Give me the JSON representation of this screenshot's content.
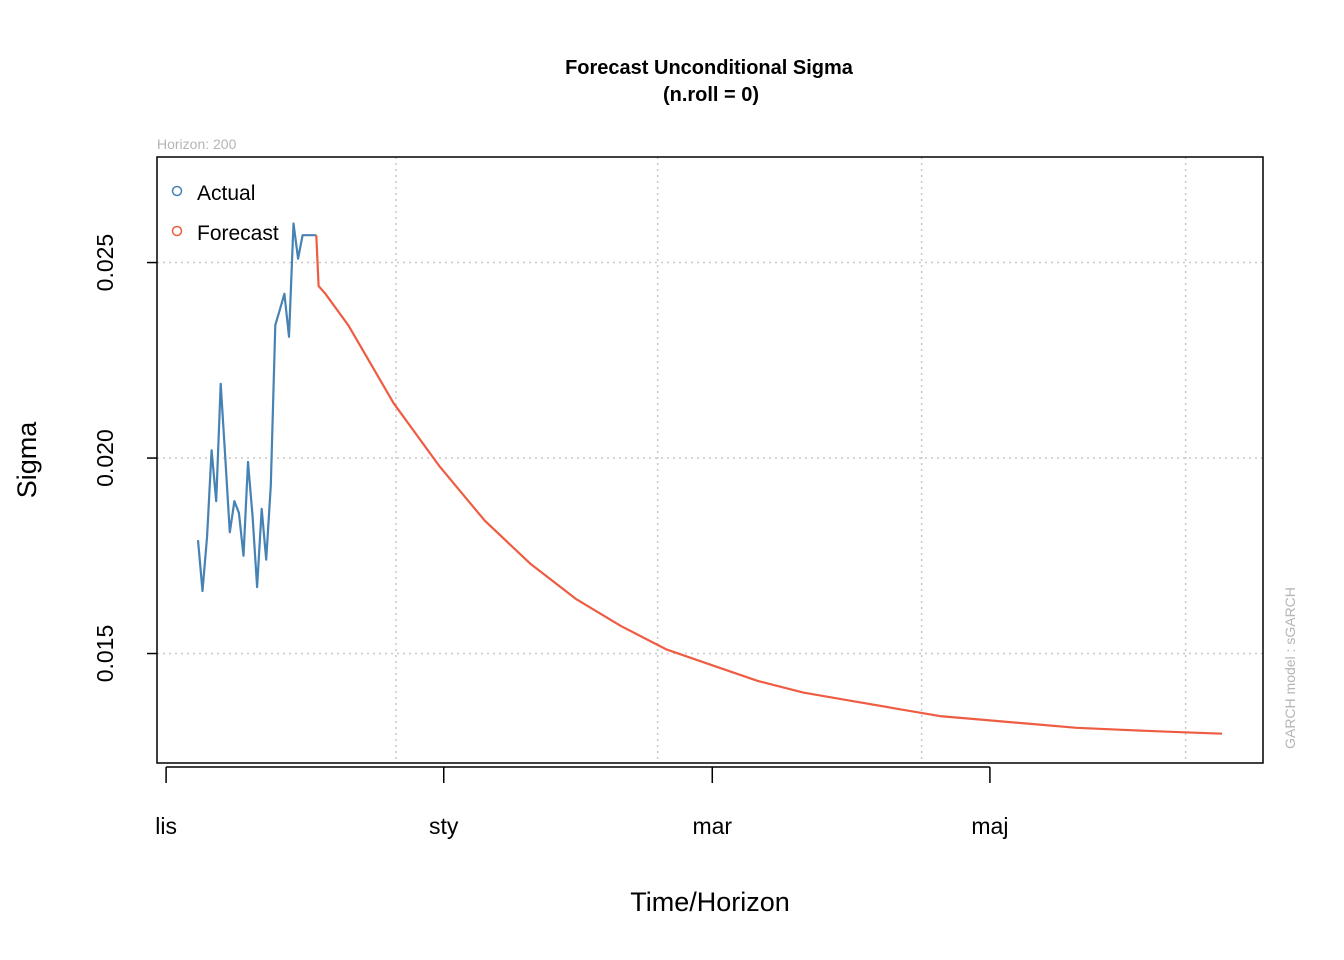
{
  "chart_data": {
    "type": "line",
    "title": "Forecast Unconditional Sigma",
    "subtitle": "(n.roll = 0)",
    "xlabel": "Time/Horizon",
    "ylabel": "Sigma",
    "top_note": "Horizon: 200",
    "side_note": "GARCH model :  sGARCH",
    "ylim": [
      0.0122,
      0.0277
    ],
    "y_ticks": [
      {
        "value": 0.015,
        "label": "0.015"
      },
      {
        "value": 0.02,
        "label": "0.020"
      },
      {
        "value": 0.025,
        "label": "0.025"
      }
    ],
    "x_ticks": [
      {
        "value": 0,
        "label": "lis"
      },
      {
        "value": 61,
        "label": "sty"
      },
      {
        "value": 120,
        "label": "mar"
      },
      {
        "value": 181,
        "label": "maj"
      }
    ],
    "x_range": [
      -2,
      241
    ],
    "x_grid": [
      50.5,
      108,
      166,
      224
    ],
    "legend": {
      "position": "top-left",
      "entries": [
        "Actual",
        "Forecast"
      ]
    },
    "grid": true,
    "colors": {
      "actual": "#4682b4",
      "forecast": "#ee5c42",
      "grid": "#c8c8c8"
    },
    "series": [
      {
        "name": "Actual",
        "x": [
          7,
          8,
          9,
          10,
          11,
          12,
          13,
          14,
          15,
          16,
          17,
          18,
          19,
          20,
          21,
          22,
          23,
          24,
          25,
          26,
          27,
          28,
          29,
          30,
          31,
          32,
          33
        ],
        "y": [
          0.0179,
          0.0166,
          0.018,
          0.0202,
          0.0189,
          0.0219,
          0.02,
          0.0181,
          0.0189,
          0.0186,
          0.0175,
          0.0199,
          0.0185,
          0.0167,
          0.0187,
          0.0174,
          0.0193,
          0.0234,
          0.0238,
          0.0242,
          0.0231,
          0.026,
          0.0251,
          0.0257,
          0.0257,
          0.0257,
          0.0257
        ]
      },
      {
        "name": "Forecast",
        "x": [
          33,
          33.5,
          35,
          40,
          50,
          60,
          70,
          80,
          90,
          100,
          110,
          120,
          130,
          140,
          150,
          160,
          170,
          180,
          190,
          200,
          210,
          220,
          232
        ],
        "y": [
          0.0257,
          0.0244,
          0.0242,
          0.0234,
          0.0214,
          0.0198,
          0.0184,
          0.0173,
          0.0164,
          0.0157,
          0.0151,
          0.0147,
          0.0143,
          0.014,
          0.0138,
          0.0136,
          0.0134,
          0.0133,
          0.0132,
          0.0131,
          0.01305,
          0.013,
          0.01295
        ]
      }
    ]
  }
}
